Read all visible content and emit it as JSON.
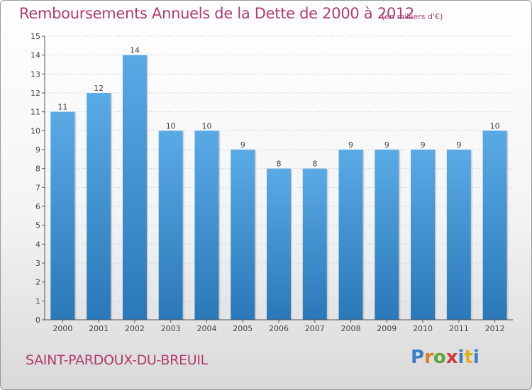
{
  "title": "Remboursements Annuels de la Dette de 2000 à 2012",
  "unit": "(en milliers d'€)",
  "commune": "SAINT-PARDOUX-DU-BREUIL",
  "logo": {
    "letters": [
      "P",
      "r",
      "o",
      "x",
      "i",
      "t",
      "i"
    ],
    "colors": [
      "#3a7ec8",
      "#e07a1a",
      "#5aa83a",
      "#d23a3a",
      "#3a7ec8",
      "#e0b21a",
      "#3a7ec8"
    ]
  },
  "colors": {
    "bar_top": "#5aaae6",
    "bar_bottom": "#2a78b8",
    "accent": "#b23a6e"
  },
  "chart_data": {
    "type": "bar",
    "title": "Remboursements Annuels de la Dette de 2000 à 2012",
    "xlabel": "",
    "ylabel": "",
    "categories": [
      "2000",
      "2001",
      "2002",
      "2003",
      "2004",
      "2005",
      "2006",
      "2007",
      "2008",
      "2009",
      "2010",
      "2011",
      "2012"
    ],
    "values": [
      11,
      12,
      14,
      10,
      10,
      9,
      8,
      8,
      9,
      9,
      9,
      9,
      10
    ],
    "ylim": [
      0,
      15
    ],
    "yticks": [
      0,
      1,
      2,
      3,
      4,
      5,
      6,
      7,
      8,
      9,
      10,
      11,
      12,
      13,
      14,
      15
    ],
    "grid": true,
    "legend": "none"
  }
}
